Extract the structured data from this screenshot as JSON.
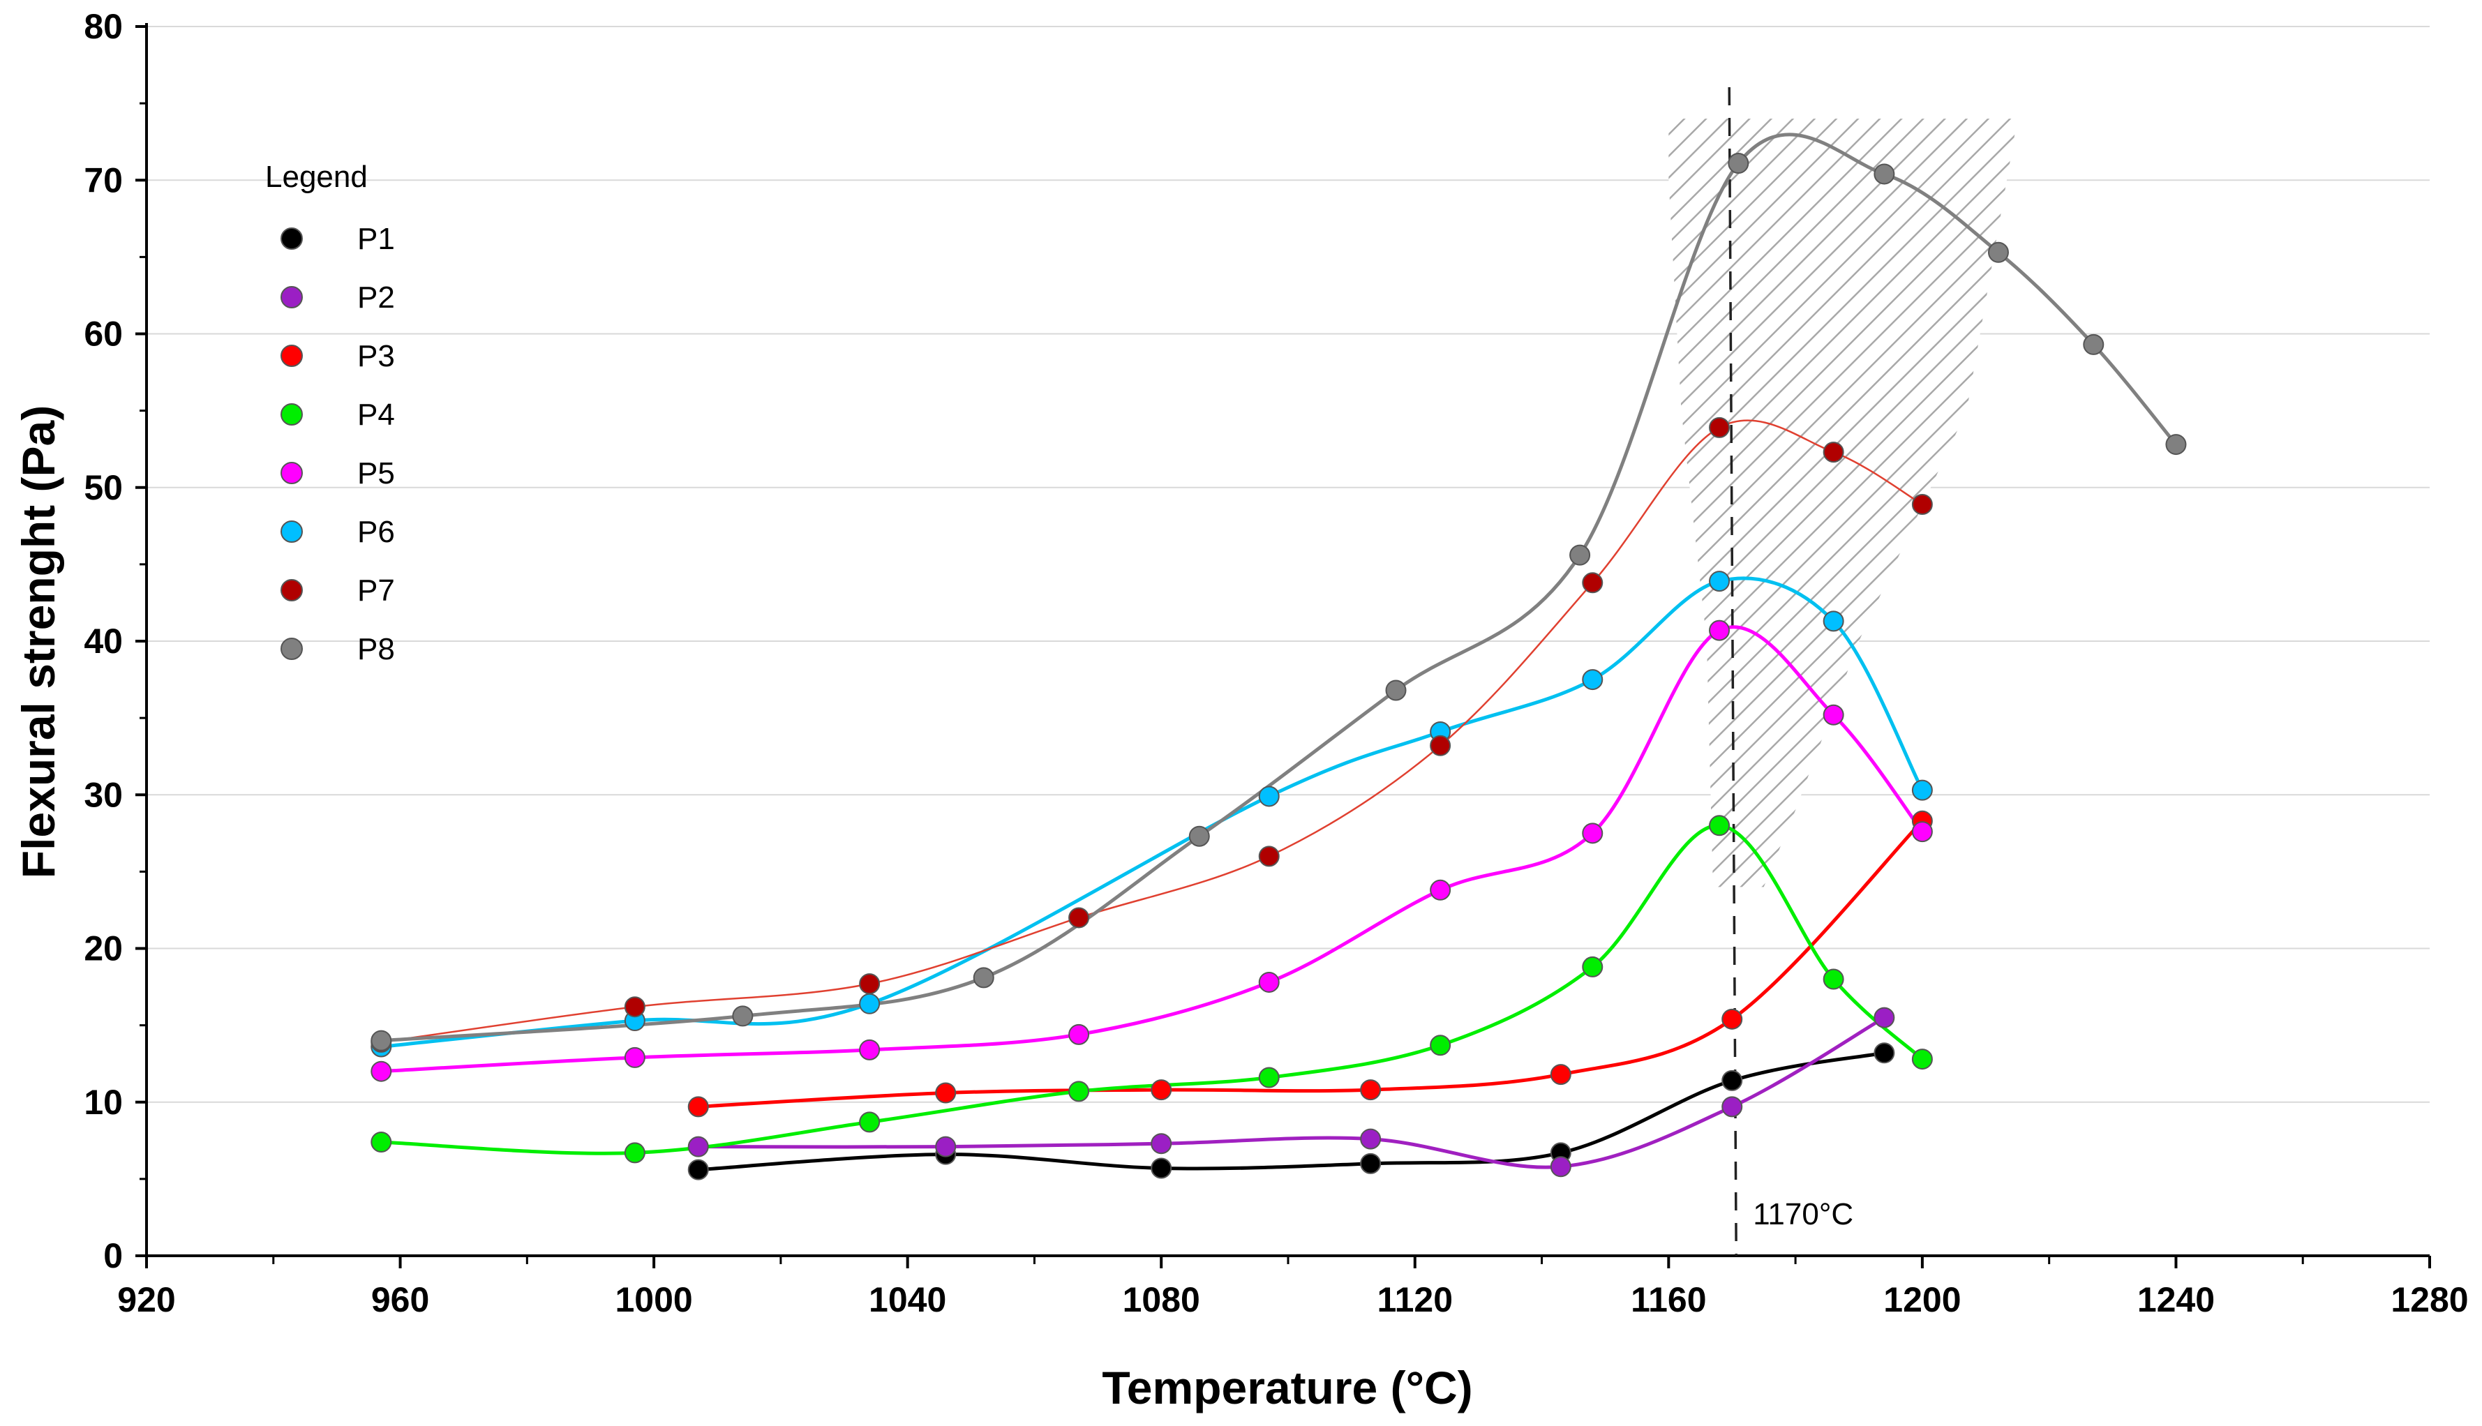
{
  "chart_data": {
    "type": "line",
    "title": "",
    "xlabel": "Temperature",
    "xlabel_unit": "(°C)",
    "ylabel": "Flexural strenght",
    "ylabel_unit": "(Pa)",
    "xlim": [
      920,
      1280
    ],
    "ylim": [
      0,
      80
    ],
    "xticks": [
      920,
      960,
      1000,
      1040,
      1080,
      1120,
      1160,
      1200,
      1240,
      1280
    ],
    "yticks": [
      0,
      10,
      20,
      30,
      40,
      50,
      60,
      70,
      80
    ],
    "grid": "horizontal",
    "legend": {
      "title": "Legend",
      "position": "top-left"
    },
    "annotation": {
      "x": 1170,
      "label": "1170°C",
      "style": "dashed vertical line"
    },
    "series": [
      {
        "name": "P1",
        "color": "#000000",
        "line_color": "#000000",
        "x": [
          1007,
          1046,
          1080,
          1113,
          1143,
          1170,
          1194
        ],
        "y": [
          5.6,
          6.6,
          5.7,
          6.0,
          6.7,
          11.4,
          13.2
        ]
      },
      {
        "name": "P2",
        "color": "#9b1fc4",
        "line_color": "#a020c0",
        "x": [
          1007,
          1046,
          1080,
          1113,
          1143,
          1170,
          1194
        ],
        "y": [
          7.1,
          7.1,
          7.3,
          7.6,
          5.8,
          9.7,
          15.5
        ]
      },
      {
        "name": "P3",
        "color": "#ff0000",
        "line_color": "#ff0000",
        "x": [
          1007,
          1046,
          1080,
          1113,
          1143,
          1170,
          1200
        ],
        "y": [
          9.7,
          10.6,
          10.8,
          10.8,
          11.8,
          15.4,
          28.3
        ]
      },
      {
        "name": "P4",
        "color": "#00ee00",
        "line_color": "#00ee00",
        "x": [
          957,
          997,
          1034,
          1067,
          1097,
          1124,
          1148,
          1168,
          1186,
          1200
        ],
        "y": [
          7.4,
          6.7,
          8.7,
          10.7,
          11.6,
          13.7,
          18.8,
          28.0,
          18.0,
          12.8
        ]
      },
      {
        "name": "P5",
        "color": "#ff00ff",
        "line_color": "#ff00ff",
        "x": [
          957,
          997,
          1034,
          1067,
          1097,
          1124,
          1148,
          1168,
          1186,
          1200
        ],
        "y": [
          12.0,
          12.9,
          13.4,
          14.4,
          17.8,
          23.8,
          27.5,
          40.7,
          35.2,
          27.6
        ]
      },
      {
        "name": "P6",
        "color": "#00bfff",
        "line_color": "#00c0f0",
        "x": [
          957,
          997,
          1034,
          1097,
          1124,
          1148,
          1168,
          1186,
          1200
        ],
        "y": [
          13.6,
          15.3,
          16.4,
          29.9,
          34.1,
          37.5,
          43.9,
          41.3,
          30.3
        ]
      },
      {
        "name": "P7",
        "color": "#b00000",
        "line_color": "#e04030",
        "x": [
          957,
          997,
          1034,
          1067,
          1097,
          1124,
          1148,
          1168,
          1186,
          1200
        ],
        "y": [
          13.9,
          16.2,
          17.7,
          22.0,
          26.0,
          33.2,
          43.8,
          53.9,
          52.3,
          48.9
        ]
      },
      {
        "name": "P8",
        "color": "#808080",
        "line_color": "#808080",
        "x": [
          957,
          1014,
          1052,
          1086,
          1117,
          1146,
          1171,
          1194,
          1212,
          1227,
          1240
        ],
        "y": [
          14.0,
          15.6,
          18.1,
          27.3,
          36.8,
          45.6,
          71.1,
          70.4,
          65.3,
          59.3,
          52.8
        ]
      }
    ],
    "hatched_region": {
      "points": [
        [
          1160,
          74
        ],
        [
          1215,
          74
        ],
        [
          1207,
          55
        ],
        [
          1190,
          40
        ],
        [
          1180,
          29
        ],
        [
          1175,
          24
        ],
        [
          1167,
          24
        ],
        [
          1166,
          40
        ],
        [
          1162,
          55
        ],
        [
          1160,
          70
        ]
      ],
      "color": "#a0a0a0"
    }
  }
}
